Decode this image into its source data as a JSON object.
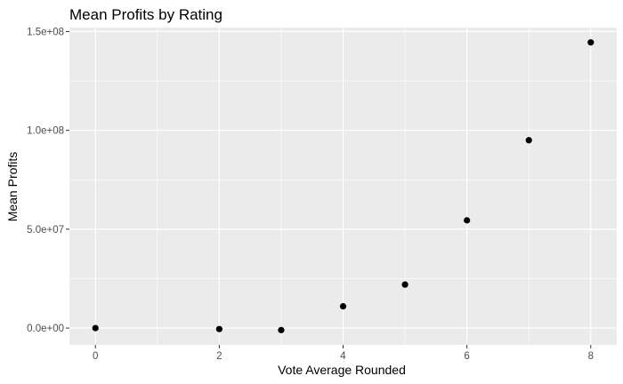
{
  "chart_data": {
    "type": "scatter",
    "title": "Mean Profits by Rating",
    "xlabel": "Vote Average Rounded",
    "ylabel": "Mean Profits",
    "x": [
      0,
      2,
      3,
      4,
      5,
      6,
      7,
      8
    ],
    "y": [
      0,
      -500000,
      -1000000,
      11000000,
      22000000,
      54500000,
      95000000,
      144500000
    ],
    "xlim": [
      -0.42,
      8.42
    ],
    "ylim": [
      -8500000,
      152000000
    ],
    "x_ticks": [
      0,
      2,
      4,
      6,
      8
    ],
    "x_tick_labels": [
      "0",
      "2",
      "4",
      "6",
      "8"
    ],
    "y_ticks": [
      0,
      50000000,
      100000000,
      150000000
    ],
    "y_tick_labels": [
      "0.0e+00",
      "5.0e+07",
      "1.0e+08",
      "1.5e+08"
    ],
    "grid": true,
    "legend": "none",
    "colors": {
      "panel": "#ebebeb",
      "grid": "#ffffff",
      "point": "#000000",
      "tick_label": "#4d4d4d",
      "tick_mark": "#333333"
    }
  }
}
